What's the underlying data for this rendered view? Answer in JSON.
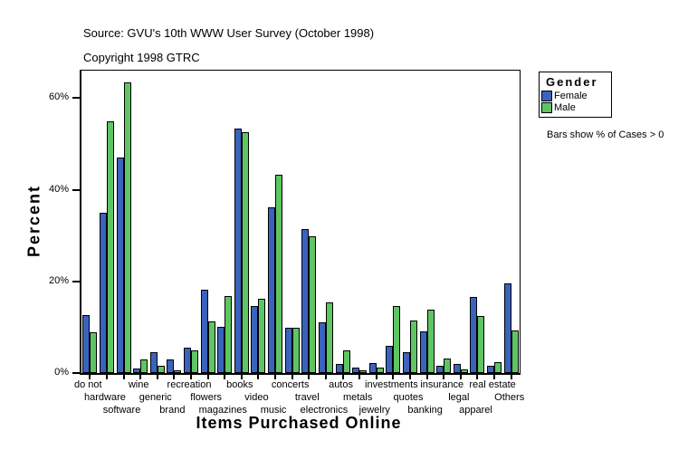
{
  "header": {
    "source_line": "Source: GVU's 10th WWW User Survey (October 1998)",
    "copyright_line": "Copyright 1998 GTRC"
  },
  "legend": {
    "title": "Gender",
    "items": [
      {
        "label": "Female",
        "color": "#3A63BD"
      },
      {
        "label": "Male",
        "color": "#5FC563"
      }
    ]
  },
  "note": "Bars show % of Cases > 0",
  "chart_data": {
    "type": "bar",
    "title": "",
    "xlabel": "Items Purchased Online",
    "ylabel": "Percent",
    "ylim": [
      0,
      66
    ],
    "yticks": [
      0,
      20,
      40,
      60
    ],
    "ytick_labels": [
      "0%",
      "20%",
      "40%",
      "60%"
    ],
    "grid": false,
    "legend_position": "top-right",
    "categories": [
      "do not",
      "hardware",
      "software",
      "wine",
      "generic",
      "brand",
      "recreation",
      "flowers",
      "magazines",
      "books",
      "video",
      "music",
      "concerts",
      "travel",
      "electronics",
      "autos",
      "metals",
      "jewelry",
      "investments",
      "quotes",
      "banking",
      "insurance",
      "legal",
      "apparel",
      "real estate",
      "Others"
    ],
    "series": [
      {
        "name": "Female",
        "color": "#3A63BD",
        "values": [
          12.7,
          35,
          47,
          1,
          4.5,
          3,
          5.5,
          18.2,
          10,
          53.3,
          14.7,
          36.2,
          9.8,
          31.5,
          11,
          2,
          1.2,
          2.2,
          6,
          4.5,
          9,
          1.6,
          2,
          16.6,
          1.6,
          19.6
        ]
      },
      {
        "name": "Male",
        "color": "#5FC563",
        "values": [
          8.9,
          55,
          63.5,
          3,
          1.5,
          0.5,
          5,
          11.2,
          16.8,
          52.5,
          16.2,
          43.3,
          9.8,
          29.8,
          15.5,
          5,
          0.6,
          1.2,
          14.6,
          11.5,
          13.8,
          3.2,
          0.8,
          12.5,
          2.4,
          9.2
        ]
      }
    ]
  }
}
